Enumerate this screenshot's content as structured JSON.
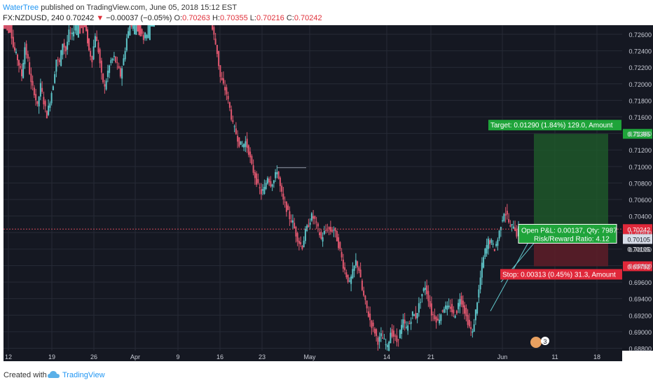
{
  "header": {
    "author": "WaterTree",
    "published_text": "published on TradingView.com, June 05, 2018 15:12 EST",
    "symbol": "FX:NZDUSD, 240",
    "last": "0.70242",
    "arrow": "▼",
    "change": "−0.00037 (−0.05%)",
    "o_label": "O:",
    "o_value": "0.70263",
    "h_label": "H:",
    "h_value": "0.70355",
    "l_label": "L:",
    "l_value": "0.70216",
    "c_label": "C:",
    "c_value": "0.70242"
  },
  "footer": {
    "created_with": "Created with",
    "brand": "TradingView",
    "logo_icon": "tradingview-cloud-icon"
  },
  "chart_data": {
    "type": "candlestick",
    "instrument": "NZDUSD",
    "interval": "240",
    "ylim": [
      0.6877,
      0.7271
    ],
    "y_ticks": [
      "0.72600",
      "0.72400",
      "0.72200",
      "0.72000",
      "0.71800",
      "0.71600",
      "0.71400",
      "0.71200",
      "0.71000",
      "0.70800",
      "0.70600",
      "0.70400",
      "0.70200",
      "0.70000",
      "0.69800",
      "0.69600",
      "0.69400",
      "0.69200",
      "0.69000",
      "0.68800"
    ],
    "x_ticks": [
      "12",
      "19",
      "26",
      "Apr",
      "9",
      "16",
      "23",
      "May",
      "14",
      "21",
      "Jun",
      "11",
      "18"
    ],
    "colors": {
      "up": "#5ec4c8",
      "down": "#e0576f",
      "background": "#151822",
      "grid": "#262a36",
      "target_zone": "#1e5b2a",
      "stop_zone": "#5e1d28",
      "price_line": "#d04a5a"
    },
    "close_path": [
      [
        0,
        0.73
      ],
      [
        7,
        0.7275
      ],
      [
        10,
        0.7245
      ],
      [
        14,
        0.723
      ],
      [
        18,
        0.721
      ],
      [
        21,
        0.7245
      ],
      [
        24,
        0.7228
      ],
      [
        27,
        0.72
      ],
      [
        30,
        0.719
      ],
      [
        33,
        0.7172
      ],
      [
        36,
        0.7198
      ],
      [
        39,
        0.7178
      ],
      [
        42,
        0.7162
      ],
      [
        45,
        0.718
      ],
      [
        48,
        0.72
      ],
      [
        51,
        0.723
      ],
      [
        54,
        0.7225
      ],
      [
        57,
        0.725
      ],
      [
        60,
        0.724
      ],
      [
        63,
        0.7262
      ],
      [
        66,
        0.7258
      ],
      [
        69,
        0.7275
      ],
      [
        72,
        0.73
      ],
      [
        78,
        0.7275
      ],
      [
        82,
        0.724
      ],
      [
        85,
        0.723
      ],
      [
        88,
        0.726
      ],
      [
        91,
        0.724
      ],
      [
        94,
        0.721
      ],
      [
        97,
        0.7195
      ],
      [
        100,
        0.7215
      ],
      [
        103,
        0.7228
      ],
      [
        106,
        0.7232
      ],
      [
        109,
        0.7222
      ],
      [
        112,
        0.721
      ],
      [
        115,
        0.723
      ],
      [
        118,
        0.7255
      ],
      [
        121,
        0.727
      ],
      [
        124,
        0.7275
      ],
      [
        127,
        0.73
      ],
      [
        131,
        0.727
      ],
      [
        134,
        0.7255
      ],
      [
        137,
        0.7262
      ],
      [
        140,
        0.729
      ],
      [
        144,
        0.73
      ],
      [
        198,
        0.7275
      ],
      [
        201,
        0.7258
      ],
      [
        204,
        0.7238
      ],
      [
        207,
        0.7208
      ],
      [
        210,
        0.7198
      ],
      [
        213,
        0.7188
      ],
      [
        216,
        0.717
      ],
      [
        219,
        0.715
      ],
      [
        222,
        0.714
      ],
      [
        225,
        0.7128
      ],
      [
        228,
        0.7125
      ],
      [
        231,
        0.713
      ],
      [
        234,
        0.7118
      ],
      [
        237,
        0.71
      ],
      [
        240,
        0.7088
      ],
      [
        243,
        0.7076
      ],
      [
        246,
        0.7068
      ],
      [
        249,
        0.7073
      ],
      [
        252,
        0.7088
      ],
      [
        255,
        0.7079
      ],
      [
        258,
        0.7083
      ],
      [
        261,
        0.7096
      ],
      [
        264,
        0.7075
      ],
      [
        267,
        0.7058
      ],
      [
        270,
        0.7049
      ],
      [
        273,
        0.7038
      ],
      [
        276,
        0.7032
      ],
      [
        279,
        0.7018
      ],
      [
        282,
        0.7008
      ],
      [
        285,
        0.7003
      ],
      [
        288,
        0.7021
      ],
      [
        291,
        0.703
      ],
      [
        294,
        0.704
      ],
      [
        297,
        0.7035
      ],
      [
        300,
        0.7024
      ],
      [
        303,
        0.7012
      ],
      [
        306,
        0.702
      ],
      [
        309,
        0.7025
      ],
      [
        312,
        0.7022
      ],
      [
        315,
        0.7024
      ],
      [
        318,
        0.7012
      ],
      [
        321,
        0.6998
      ],
      [
        324,
        0.698
      ],
      [
        327,
        0.6968
      ],
      [
        330,
        0.6958
      ],
      [
        333,
        0.6972
      ],
      [
        336,
        0.6985
      ],
      [
        339,
        0.6975
      ],
      [
        342,
        0.695
      ],
      [
        345,
        0.6935
      ],
      [
        348,
        0.692
      ],
      [
        351,
        0.6908
      ],
      [
        354,
        0.69
      ],
      [
        357,
        0.6888
      ],
      [
        360,
        0.6895
      ],
      [
        363,
        0.6888
      ],
      [
        366,
        0.688
      ],
      [
        369,
        0.69
      ],
      [
        372,
        0.6895
      ],
      [
        375,
        0.6888
      ],
      [
        378,
        0.69
      ],
      [
        381,
        0.6912
      ],
      [
        384,
        0.6904
      ],
      [
        387,
        0.691
      ],
      [
        390,
        0.6922
      ],
      [
        393,
        0.6918
      ],
      [
        396,
        0.6932
      ],
      [
        399,
        0.6946
      ],
      [
        402,
        0.6955
      ],
      [
        405,
        0.694
      ],
      [
        408,
        0.6922
      ],
      [
        411,
        0.6918
      ],
      [
        414,
        0.6912
      ],
      [
        417,
        0.6922
      ],
      [
        420,
        0.693
      ],
      [
        423,
        0.6928
      ],
      [
        426,
        0.693
      ],
      [
        429,
        0.692
      ],
      [
        432,
        0.6925
      ],
      [
        435,
        0.6942
      ],
      [
        438,
        0.6932
      ],
      [
        441,
        0.6918
      ],
      [
        444,
        0.6906
      ],
      [
        447,
        0.6898
      ],
      [
        450,
        0.6925
      ],
      [
        453,
        0.695
      ],
      [
        456,
        0.698
      ],
      [
        459,
        0.6998
      ],
      [
        462,
        0.701
      ],
      [
        465,
        0.7008
      ],
      [
        468,
        0.7
      ],
      [
        471,
        0.7012
      ],
      [
        474,
        0.703
      ],
      [
        477,
        0.7045
      ],
      [
        480,
        0.704
      ],
      [
        483,
        0.7025
      ],
      [
        486,
        0.703
      ],
      [
        489,
        0.7018
      ],
      [
        491,
        0.7024
      ]
    ],
    "annotations": {
      "target_label": "Target: 0.01290 (1.84%) 129.0, Amount",
      "target_price": "0.71395",
      "stop_label": "Stop: 0.00313 (0.45%) 31.3, Amount",
      "stop_price": "0.69792",
      "open_pl_label": "Open P&L: 0.00137, Qty: 7987",
      "rr_label": "Risk/Reward Ratio: 4.12",
      "entry_price": "0.70105",
      "entry_price2": "0.70105",
      "current_price": "0.70242",
      "countdown": "47:27",
      "target_value": 0.71395,
      "entry_value": 0.70105,
      "stop_value": 0.69792,
      "current_value": 0.70242,
      "events_badge": "3"
    }
  }
}
